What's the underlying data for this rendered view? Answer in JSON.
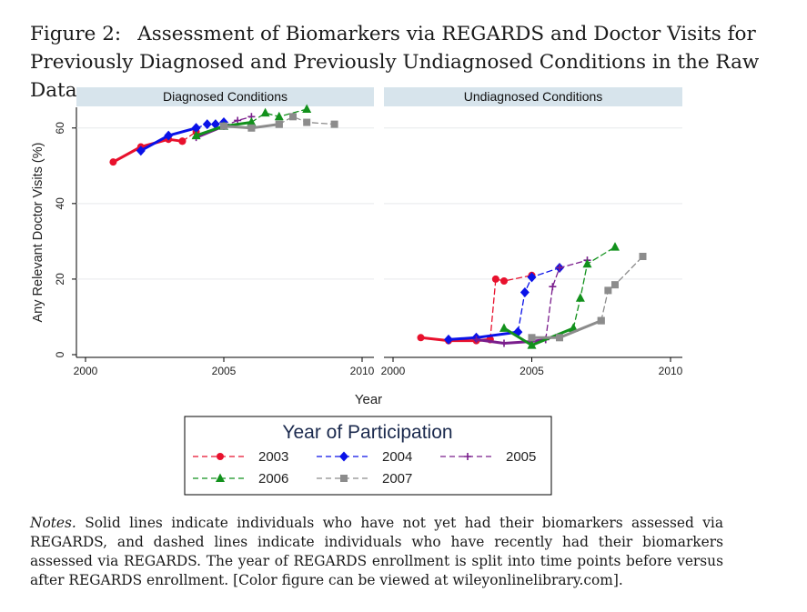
{
  "figure": {
    "label": "Figure 2:",
    "title": "Assessment of Biomarkers via REGARDS and Doctor Visits for Previously Diagnosed and Previously Undiagnosed Conditions in the Raw Data"
  },
  "notes": {
    "lead": "Notes.",
    "text": "Solid lines indicate individuals who have not yet had their biomarkers assessed via REGARDS, and dashed lines indicate individuals who have recently had their biomarkers assessed via REGARDS. The year of REGARDS enrollment is split into time points before versus after REGARDS enrollment. [Color figure can be viewed at wileyonlinelibrary.com]."
  },
  "chart_data": {
    "type": "line",
    "ylabel": "Any Relevant Doctor Visits (%)",
    "xlabel": "Year",
    "xlim": [
      2000,
      2010
    ],
    "ylim": [
      0,
      65
    ],
    "xticks": [
      2000,
      2005,
      2010
    ],
    "yticks": [
      0,
      20,
      40,
      60
    ],
    "grid": true,
    "legend": {
      "title": "Year of Participation",
      "placement": "bottom-center",
      "entries": [
        "2003",
        "2004",
        "2005",
        "2006",
        "2007"
      ]
    },
    "colors": {
      "2003": "#e8112d",
      "2004": "#0a12e8",
      "2005": "#7a1d8c",
      "2006": "#12911c",
      "2007": "#8c8c8c"
    },
    "markers": {
      "2003": "circle",
      "2004": "diamond",
      "2005": "plus",
      "2006": "triangle",
      "2007": "square"
    },
    "panels": [
      {
        "title": "Diagnosed Conditions",
        "series": [
          {
            "cohort": "2003",
            "style": "solid",
            "points": [
              [
                2001,
                51
              ],
              [
                2002,
                55
              ],
              [
                2003,
                57
              ],
              [
                2003.5,
                56.5
              ]
            ]
          },
          {
            "cohort": "2003",
            "style": "dashed",
            "points": [
              [
                2003.5,
                56.5
              ],
              [
                2004,
                59
              ]
            ]
          },
          {
            "cohort": "2004",
            "style": "solid",
            "points": [
              [
                2002,
                54
              ],
              [
                2003,
                58
              ],
              [
                2004,
                60
              ]
            ]
          },
          {
            "cohort": "2004",
            "style": "dashed",
            "points": [
              [
                2004,
                60
              ],
              [
                2004.4,
                61
              ],
              [
                2004.7,
                61
              ],
              [
                2005,
                61.5
              ]
            ]
          },
          {
            "cohort": "2005",
            "style": "solid",
            "points": [
              [
                2004,
                57.5
              ],
              [
                2005,
                60.5
              ]
            ]
          },
          {
            "cohort": "2005",
            "style": "dashed",
            "points": [
              [
                2005,
                60.5
              ],
              [
                2005.5,
                62
              ],
              [
                2006,
                63
              ]
            ]
          },
          {
            "cohort": "2006",
            "style": "solid",
            "points": [
              [
                2004,
                58
              ],
              [
                2005,
                60.5
              ],
              [
                2006,
                61.5
              ]
            ]
          },
          {
            "cohort": "2006",
            "style": "dashed",
            "points": [
              [
                2006,
                61.5
              ],
              [
                2006.5,
                64
              ],
              [
                2007,
                63
              ],
              [
                2008,
                65
              ]
            ]
          },
          {
            "cohort": "2007",
            "style": "solid",
            "points": [
              [
                2005,
                60.5
              ],
              [
                2006,
                60
              ],
              [
                2007,
                61
              ]
            ]
          },
          {
            "cohort": "2007",
            "style": "dashed",
            "points": [
              [
                2007,
                61
              ],
              [
                2007.5,
                63
              ],
              [
                2008,
                61.5
              ],
              [
                2009,
                61
              ]
            ]
          }
        ]
      },
      {
        "title": "Undiagnosed Conditions",
        "series": [
          {
            "cohort": "2003",
            "style": "solid",
            "points": [
              [
                2001,
                4.5
              ],
              [
                2002,
                3.7
              ],
              [
                2003,
                3.7
              ],
              [
                2003.5,
                4
              ]
            ]
          },
          {
            "cohort": "2003",
            "style": "dashed",
            "points": [
              [
                2003.5,
                4
              ],
              [
                2003.7,
                20
              ],
              [
                2004,
                19.5
              ],
              [
                2005,
                21
              ]
            ]
          },
          {
            "cohort": "2004",
            "style": "solid",
            "points": [
              [
                2002,
                4
              ],
              [
                2003,
                4.5
              ],
              [
                2004.5,
                6
              ]
            ]
          },
          {
            "cohort": "2004",
            "style": "dashed",
            "points": [
              [
                2004.5,
                6
              ],
              [
                2004.75,
                16.5
              ],
              [
                2005,
                20.5
              ],
              [
                2006,
                23
              ]
            ]
          },
          {
            "cohort": "2005",
            "style": "solid",
            "points": [
              [
                2003,
                4
              ],
              [
                2004,
                3
              ],
              [
                2005,
                3.5
              ],
              [
                2005.5,
                4
              ]
            ]
          },
          {
            "cohort": "2005",
            "style": "dashed",
            "points": [
              [
                2005.5,
                4
              ],
              [
                2005.75,
                18
              ],
              [
                2006,
                23
              ],
              [
                2007,
                25
              ]
            ]
          },
          {
            "cohort": "2006",
            "style": "solid",
            "points": [
              [
                2004,
                7
              ],
              [
                2005,
                2.5
              ],
              [
                2006.5,
                7
              ]
            ]
          },
          {
            "cohort": "2006",
            "style": "dashed",
            "points": [
              [
                2006.5,
                7
              ],
              [
                2006.75,
                15
              ],
              [
                2007,
                24
              ],
              [
                2008,
                28.5
              ]
            ]
          },
          {
            "cohort": "2007",
            "style": "solid",
            "points": [
              [
                2005,
                4.5
              ],
              [
                2006,
                4.5
              ],
              [
                2007.5,
                9
              ]
            ]
          },
          {
            "cohort": "2007",
            "style": "dashed",
            "points": [
              [
                2007.5,
                9
              ],
              [
                2007.75,
                17
              ],
              [
                2008,
                18.5
              ],
              [
                2009,
                26
              ]
            ]
          }
        ]
      }
    ]
  }
}
